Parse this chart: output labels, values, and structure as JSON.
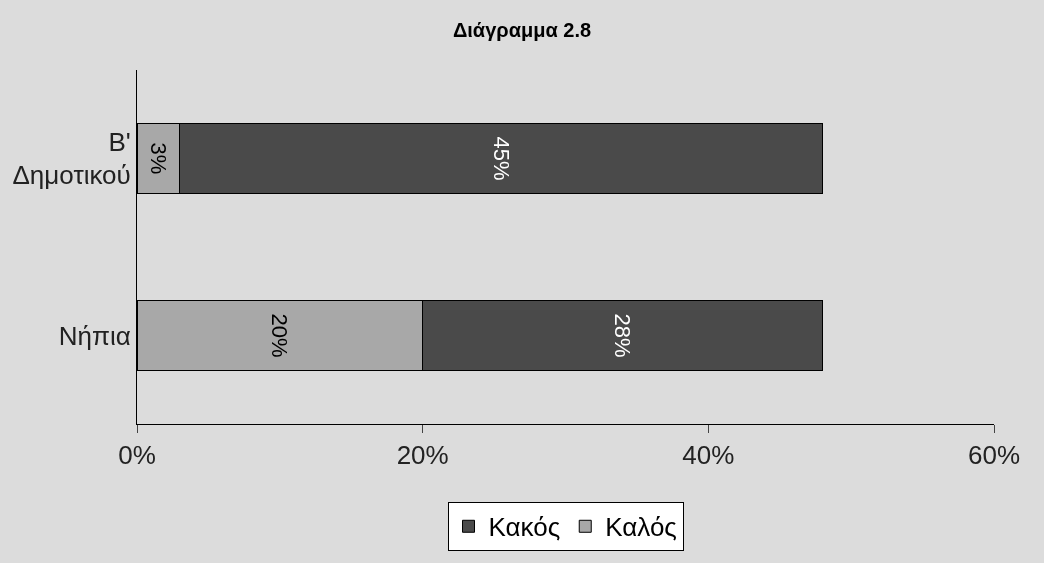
{
  "chart_data": {
    "type": "bar",
    "title": "Διάγραμμα 2.8",
    "orientation": "horizontal",
    "stacked": true,
    "categories": [
      "B' Δημοτικού",
      "Νήπια"
    ],
    "series": [
      {
        "name": "Καλός",
        "color": "#a8a8a8",
        "values": [
          3,
          20
        ],
        "value_labels": [
          "3%",
          "20%"
        ]
      },
      {
        "name": "Κακός",
        "color": "#4a4a4a",
        "values": [
          45,
          28
        ],
        "value_labels": [
          "45%",
          "28%"
        ]
      }
    ],
    "xlim": [
      0,
      60
    ],
    "xticks": [
      {
        "value": 0,
        "label": "0%"
      },
      {
        "value": 20,
        "label": "20%"
      },
      {
        "value": 40,
        "label": "40%"
      },
      {
        "value": 60,
        "label": "60%"
      }
    ],
    "grid": false,
    "legend": "bottom"
  }
}
